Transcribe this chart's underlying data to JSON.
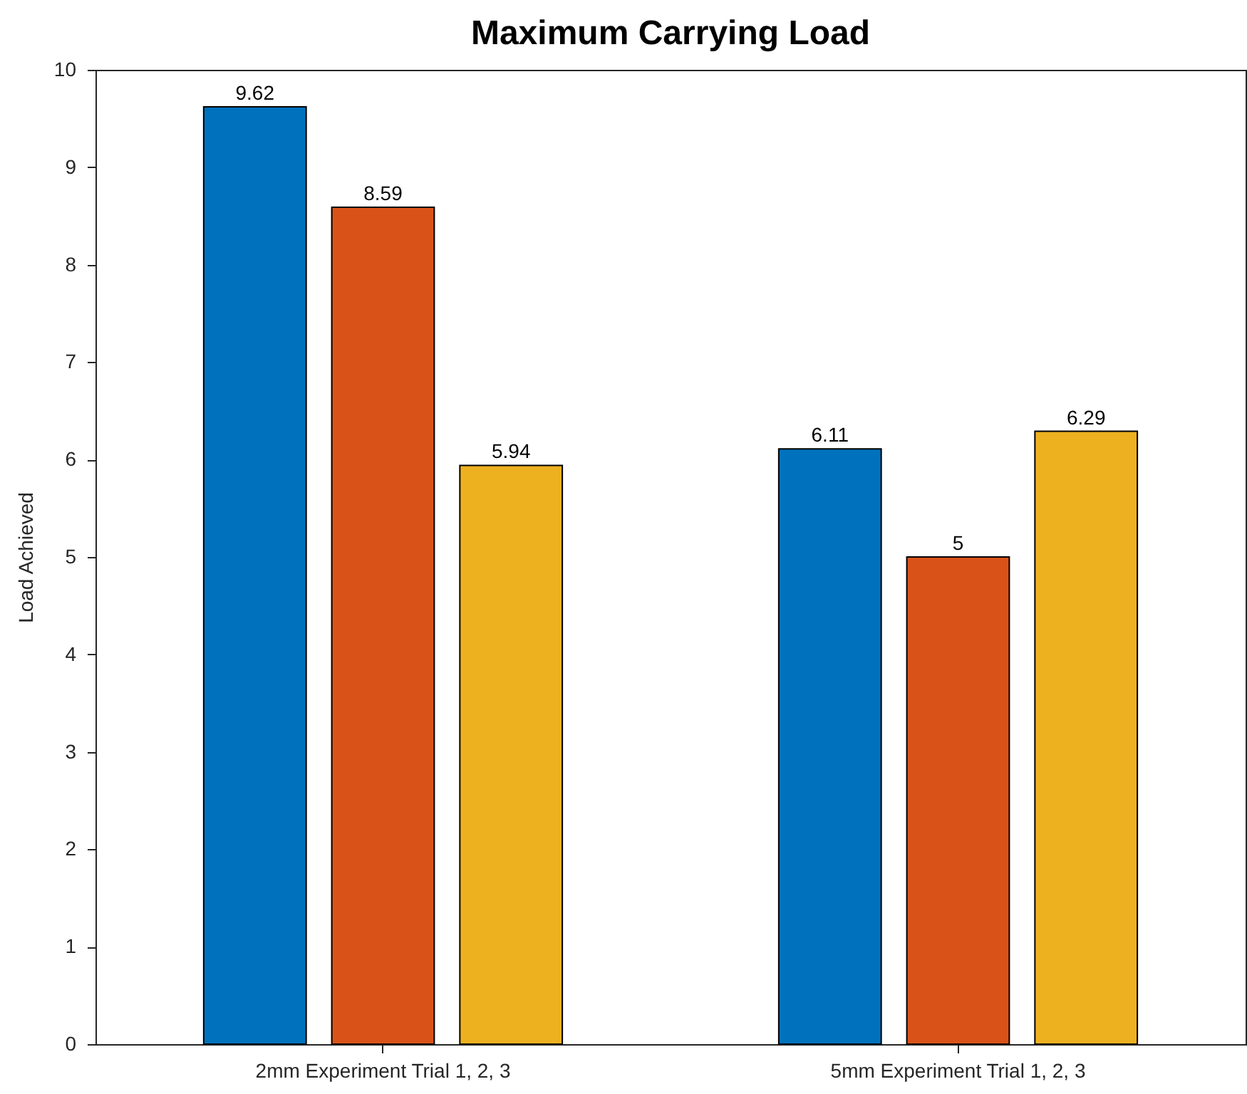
{
  "chart_data": {
    "type": "bar",
    "title": "Maximum Carrying Load",
    "ylabel": "Load Achieved",
    "categories": [
      "2mm Experiment Trial 1, 2, 3",
      "5mm Experiment Trial 1, 2, 3"
    ],
    "series": [
      {
        "color": "#0072bd",
        "values": [
          9.62,
          6.11
        ]
      },
      {
        "color": "#d95319",
        "values": [
          8.59,
          5
        ]
      },
      {
        "color": "#edb120",
        "values": [
          5.94,
          6.29
        ]
      }
    ],
    "ylim": [
      0,
      10
    ],
    "yticks": [
      0,
      1,
      2,
      3,
      4,
      5,
      6,
      7,
      8,
      9,
      10
    ],
    "data_labels": true
  }
}
